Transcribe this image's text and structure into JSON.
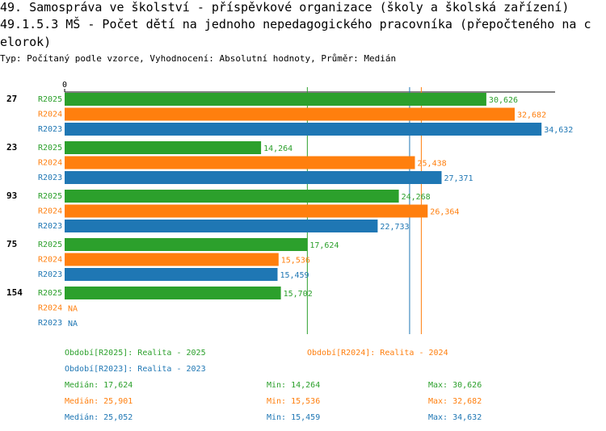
{
  "title": {
    "line1": "49. Samospráva ve školství - příspěvkové organizace (školy a školská zařízení)",
    "line2": "49.1.5.3 MŠ - Počet dětí na jednoho nepedagogického pracovníka (přepočteného na c",
    "line3": "elorok)"
  },
  "subtitle": "Typ: Počítaný podle vzorce, Vyhodnocení: Absolutní hodnoty, Průměr: Medián",
  "colors": {
    "R2025": "#2ca02c",
    "R2024": "#ff7f0e",
    "R2023": "#1f77b4"
  },
  "chart_data": {
    "type": "bar",
    "orientation": "horizontal",
    "axis_zero_label": "0",
    "xlim": [
      0,
      35.5
    ],
    "categories": [
      "27",
      "23",
      "93",
      "75",
      "154"
    ],
    "series": [
      {
        "name": "R2025",
        "values": [
          30.626,
          14.264,
          24.268,
          17.624,
          15.702
        ],
        "labels": [
          "30,626",
          "14,264",
          "24,268",
          "17,624",
          "15,702"
        ]
      },
      {
        "name": "R2024",
        "values": [
          32.682,
          25.438,
          26.364,
          15.536,
          null
        ],
        "labels": [
          "32,682",
          "25,438",
          "26,364",
          "15,536",
          "NA"
        ]
      },
      {
        "name": "R2023",
        "values": [
          34.632,
          27.371,
          22.733,
          15.459,
          null
        ],
        "labels": [
          "34,632",
          "27,371",
          "22,733",
          "15,459",
          "NA"
        ]
      }
    ],
    "medians": {
      "R2025": 17.624,
      "R2024": 25.901,
      "R2023": 25.052
    }
  },
  "legend": {
    "r2025": "Období[R2025]: Realita - 2025",
    "r2024": "Období[R2024]: Realita - 2024",
    "r2023": "Období[R2023]: Realita - 2023"
  },
  "stats": [
    {
      "median": "Medián: 17,624",
      "min": "Min: 14,264",
      "max": "Max: 30,626"
    },
    {
      "median": "Medián: 25,901",
      "min": "Min: 15,536",
      "max": "Max: 32,682"
    },
    {
      "median": "Medián: 25,052",
      "min": "Min: 15,459",
      "max": "Max: 34,632"
    }
  ]
}
